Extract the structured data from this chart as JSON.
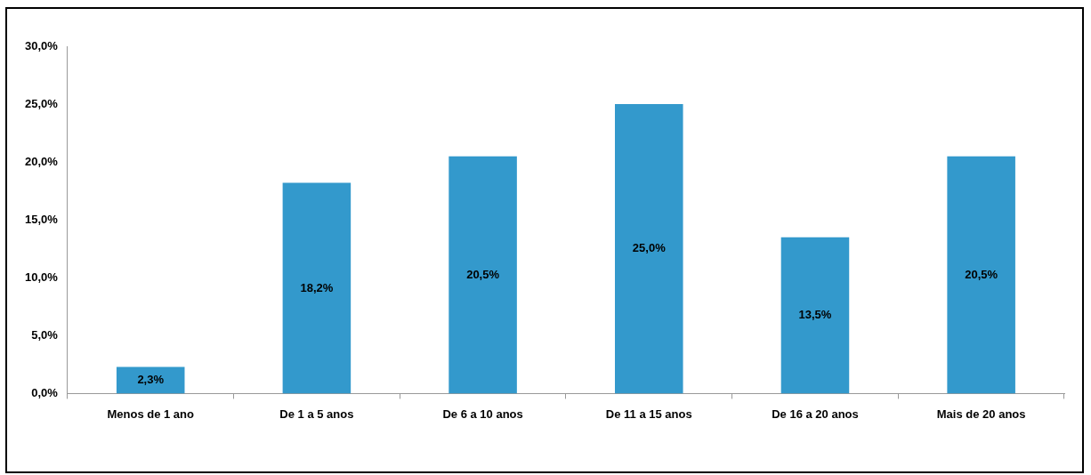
{
  "chart_data": {
    "type": "bar",
    "categories": [
      "Menos de 1 ano",
      "De 1 a 5 anos",
      "De 6 a 10 anos",
      "De 11 a 15 anos",
      "De 16 a 20 anos",
      "Mais de 20 anos"
    ],
    "values": [
      2.3,
      18.2,
      20.5,
      25.0,
      13.5,
      20.5
    ],
    "value_labels": [
      "2,3%",
      "18,2%",
      "20,5%",
      "25,0%",
      "13,5%",
      "20,5%"
    ],
    "color": "#3399cc",
    "ylim": [
      0,
      30
    ],
    "yticks": [
      {
        "value": 0,
        "label": "0,0%"
      },
      {
        "value": 5,
        "label": "5,0%"
      },
      {
        "value": 10,
        "label": "10,0%"
      },
      {
        "value": 15,
        "label": "15,0%"
      },
      {
        "value": 20,
        "label": "20,0%"
      },
      {
        "value": 25,
        "label": "25,0%"
      },
      {
        "value": 30,
        "label": "30,0%"
      }
    ],
    "grid": false,
    "legend": false
  }
}
